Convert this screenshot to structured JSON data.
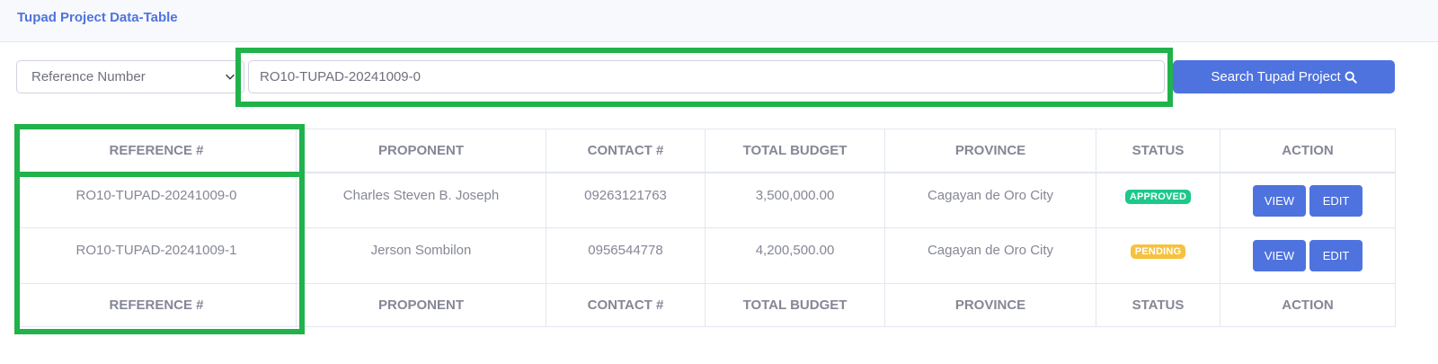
{
  "header": {
    "title": "Tupad Project Data-Table"
  },
  "filter": {
    "selected": "Reference Number"
  },
  "search": {
    "value": "RO10-TUPAD-20241009-0",
    "button_label": "Search Tupad Project"
  },
  "table": {
    "columns": [
      "REFERENCE #",
      "PROPONENT",
      "CONTACT #",
      "TOTAL BUDGET",
      "PROVINCE",
      "STATUS",
      "ACTION"
    ],
    "rows": [
      {
        "reference": "RO10-TUPAD-20241009-0",
        "proponent": "Charles Steven B. Joseph",
        "contact": "09263121763",
        "budget": "3,500,000.00",
        "province": "Cagayan de Oro City",
        "status": "APPROVED",
        "view": "VIEW",
        "edit": "EDIT"
      },
      {
        "reference": "RO10-TUPAD-20241009-1",
        "proponent": "Jerson Sombilon",
        "contact": "0956544778",
        "budget": "4,200,500.00",
        "province": "Cagayan de Oro City",
        "status": "PENDING",
        "view": "VIEW",
        "edit": "EDIT"
      }
    ]
  },
  "colors": {
    "primary": "#4e73df",
    "approved": "#1cc88a",
    "pending": "#f6c23e",
    "highlight": "#21b24b"
  }
}
